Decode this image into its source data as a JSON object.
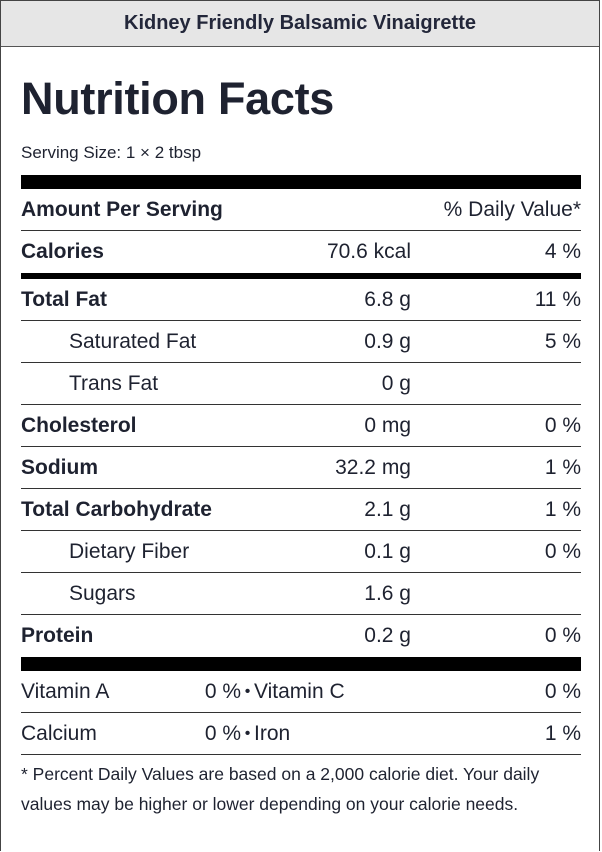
{
  "header": {
    "title": "Kidney Friendly Balsamic Vinaigrette"
  },
  "title": "Nutrition Facts",
  "serving_size": "Serving Size: 1 × 2 tbsp",
  "columns": {
    "amount_per_serving": "Amount Per Serving",
    "daily_value": "% Daily Value*"
  },
  "calories": {
    "name": "Calories",
    "amount": "70.6 kcal",
    "dv": "4 %"
  },
  "nutrients": [
    {
      "name": "Total Fat",
      "amount": "6.8 g",
      "dv": "11 %"
    },
    {
      "name": "Saturated Fat",
      "amount": "0.9 g",
      "dv": "5 %"
    },
    {
      "name": "Trans Fat",
      "amount": "0 g",
      "dv": ""
    },
    {
      "name": "Cholesterol",
      "amount": "0 mg",
      "dv": "0 %"
    },
    {
      "name": "Sodium",
      "amount": "32.2 mg",
      "dv": "1 %"
    },
    {
      "name": "Total Carbohydrate",
      "amount": "2.1 g",
      "dv": "1 %"
    },
    {
      "name": "Dietary Fiber",
      "amount": "0.1 g",
      "dv": "0 %"
    },
    {
      "name": "Sugars",
      "amount": "1.6 g",
      "dv": ""
    },
    {
      "name": "Protein",
      "amount": "0.2 g",
      "dv": "0 %"
    }
  ],
  "vitamins": [
    {
      "left_name": "Vitamin A",
      "left_dv": "0 %",
      "right_name": "Vitamin C",
      "right_dv": "0 %"
    },
    {
      "left_name": "Calcium",
      "left_dv": "0 %",
      "right_name": "Iron",
      "right_dv": "1 %"
    }
  ],
  "bullet": "•",
  "footnote": "* Percent Daily Values are based on a 2,000 calorie diet. Your daily values may be higher or lower depending on your calorie needs."
}
